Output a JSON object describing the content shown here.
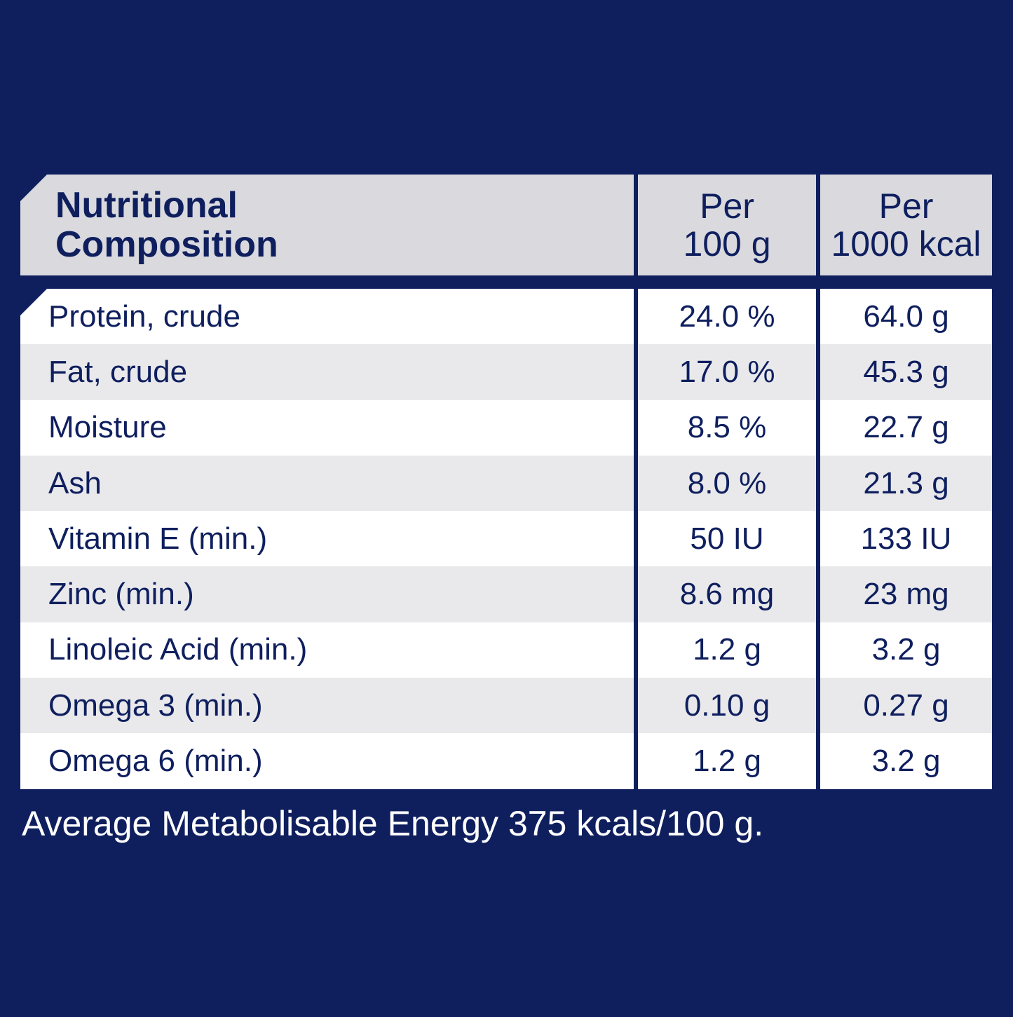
{
  "header": {
    "col1_line1": "Nutritional",
    "col1_line2": "Composition",
    "col2_line1": "Per",
    "col2_line2": "100 g",
    "col3_line1": "Per",
    "col3_line2": "1000 kcal"
  },
  "rows": [
    {
      "label": "Protein, crude",
      "per100g": "24.0 %",
      "per1000kcal": "64.0 g"
    },
    {
      "label": "Fat, crude",
      "per100g": "17.0 %",
      "per1000kcal": "45.3 g"
    },
    {
      "label": "Moisture",
      "per100g": "8.5 %",
      "per1000kcal": "22.7 g"
    },
    {
      "label": "Ash",
      "per100g": "8.0 %",
      "per1000kcal": "21.3 g"
    },
    {
      "label": "Vitamin E (min.)",
      "per100g": "50 IU",
      "per1000kcal": "133 IU"
    },
    {
      "label": "Zinc (min.)",
      "per100g": "8.6 mg",
      "per1000kcal": "23 mg"
    },
    {
      "label": "Linoleic Acid (min.)",
      "per100g": "1.2 g",
      "per1000kcal": "3.2 g"
    },
    {
      "label": "Omega 3 (min.)",
      "per100g": "0.10 g",
      "per1000kcal": "0.27 g"
    },
    {
      "label": "Omega 6 (min.)",
      "per100g": "1.2 g",
      "per1000kcal": "3.2 g"
    }
  ],
  "footnote": "Average Metabolisable Energy 375 kcals/100 g.",
  "colors": {
    "background": "#0f1f5e",
    "header_bg": "#d9d9de",
    "row_white": "#ffffff",
    "row_grey": "#e9e9ec",
    "text": "#0f1f5e"
  }
}
